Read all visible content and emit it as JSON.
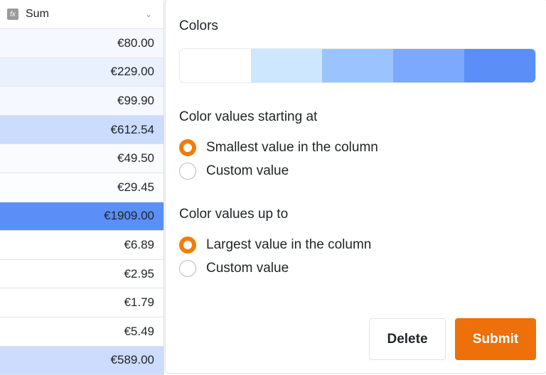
{
  "column": {
    "title": "Sum",
    "rows": [
      {
        "value": "€80.00",
        "bg": "#f6f8ff"
      },
      {
        "value": "€229.00",
        "bg": "#eaf1fe"
      },
      {
        "value": "€99.90",
        "bg": "#f6f8ff"
      },
      {
        "value": "€612.54",
        "bg": "#cbdcfc"
      },
      {
        "value": "€49.50",
        "bg": "#fafbff"
      },
      {
        "value": "€29.45",
        "bg": "#fcfdff"
      },
      {
        "value": "€1909.00",
        "bg": "#5b8ff7"
      },
      {
        "value": "€6.89",
        "bg": "#ffffff"
      },
      {
        "value": "€2.95",
        "bg": "#ffffff"
      },
      {
        "value": "€1.79",
        "bg": "#ffffff"
      },
      {
        "value": "€5.49",
        "bg": "#ffffff"
      },
      {
        "value": "€589.00",
        "bg": "#cddcfc"
      }
    ]
  },
  "panel": {
    "colors_label": "Colors",
    "colors": [
      "#ffffff",
      "#cce7fe",
      "#9bc4fe",
      "#7ca8fd",
      "#5b8ff7"
    ],
    "start_label": "Color values starting at",
    "start_options": [
      {
        "label": "Smallest value in the column",
        "selected": true
      },
      {
        "label": "Custom value",
        "selected": false
      }
    ],
    "end_label": "Color values up to",
    "end_options": [
      {
        "label": "Largest value in the column",
        "selected": true
      },
      {
        "label": "Custom value",
        "selected": false
      }
    ],
    "delete": "Delete",
    "submit": "Submit",
    "accent": "#ed700a"
  }
}
